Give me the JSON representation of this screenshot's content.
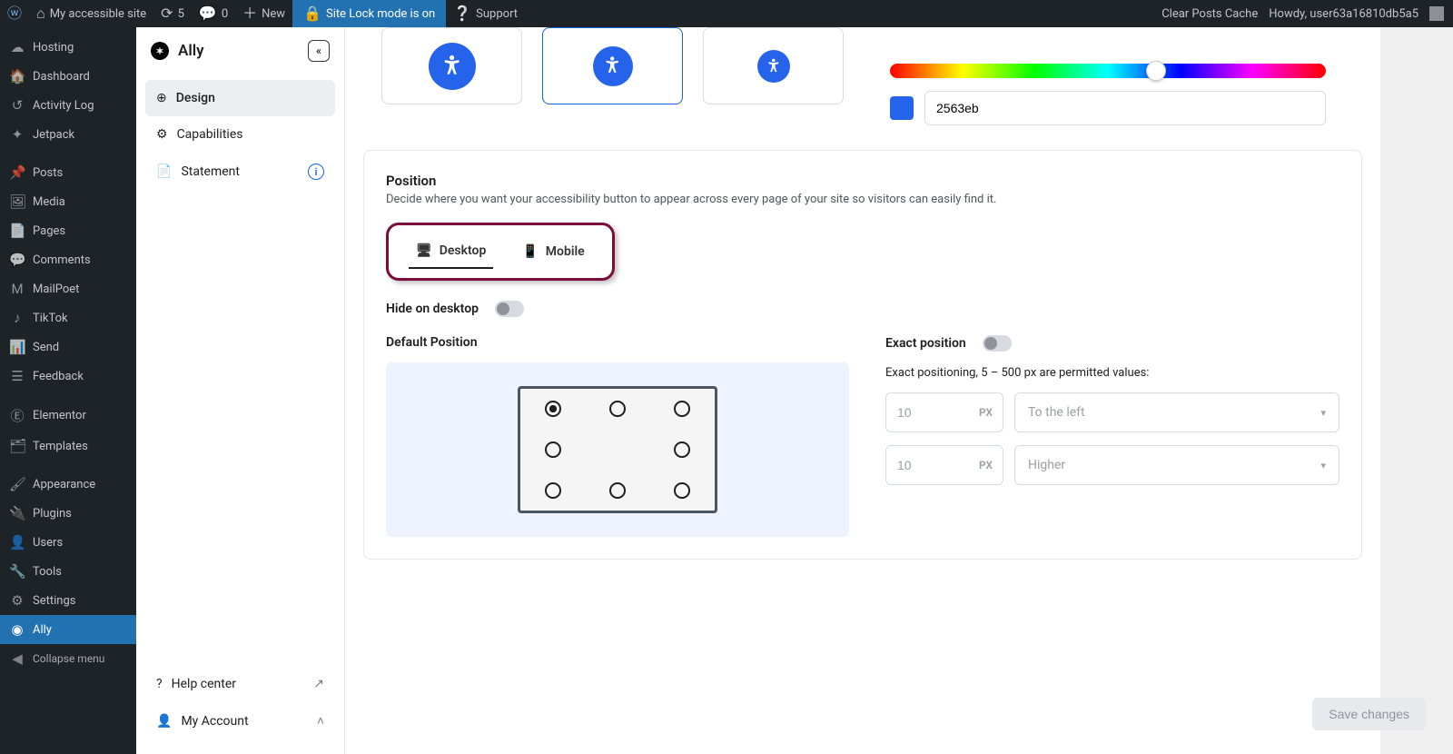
{
  "adminbar": {
    "site_name": "My accessible site",
    "updates_count": "5",
    "comments_count": "0",
    "new_label": "New",
    "lock_label": "Site Lock mode is on",
    "support_label": "Support",
    "clear_cache": "Clear Posts Cache",
    "greeting": "Howdy, user63a16810db5a5"
  },
  "wp_menu": {
    "hosting": "Hosting",
    "dashboard": "Dashboard",
    "activity": "Activity Log",
    "jetpack": "Jetpack",
    "posts": "Posts",
    "media": "Media",
    "pages": "Pages",
    "comments": "Comments",
    "mailpoet": "MailPoet",
    "tiktok": "TikTok",
    "send": "Send",
    "feedback": "Feedback",
    "elementor": "Elementor",
    "templates": "Templates",
    "appearance": "Appearance",
    "plugins": "Plugins",
    "users": "Users",
    "tools": "Tools",
    "settings": "Settings",
    "ally": "Ally",
    "collapse": "Collapse menu"
  },
  "ally": {
    "title": "Ally",
    "nav": {
      "design": "Design",
      "capabilities": "Capabilities",
      "statement": "Statement"
    },
    "bottom": {
      "help": "Help center",
      "account": "My Account"
    }
  },
  "color": {
    "hex": "2563eb",
    "swatch": "#2563eb",
    "hue_thumb_pct": 61
  },
  "position": {
    "heading": "Position",
    "desc": "Decide where you want your accessibility button to appear across every page of your site so visitors can easily find it.",
    "tabs": {
      "desktop": "Desktop",
      "mobile": "Mobile"
    },
    "hide_label": "Hide on desktop",
    "default_heading": "Default Position",
    "exact_label": "Exact position",
    "exact_hint": "Exact positioning, 5 – 500 px are permitted values:",
    "h_value": "10",
    "h_unit": "PX",
    "h_dir": "To the left",
    "v_value": "10",
    "v_unit": "PX",
    "v_dir": "Higher",
    "selected_index": 0
  },
  "save_label": "Save changes"
}
